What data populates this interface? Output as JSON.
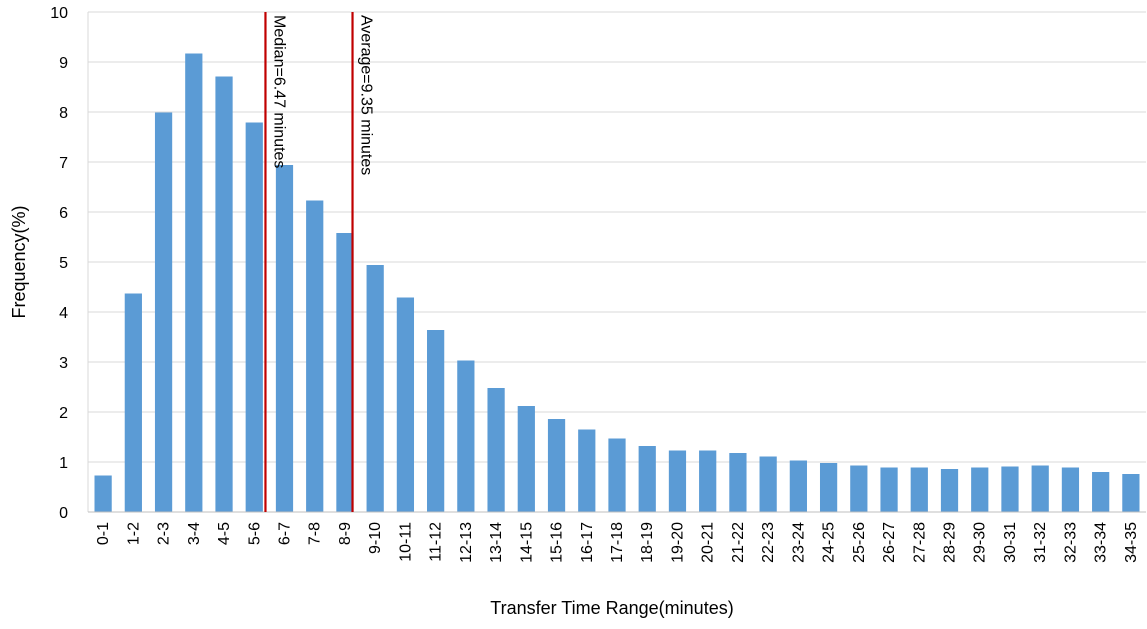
{
  "chart_data": {
    "type": "bar",
    "title": "",
    "xlabel": "Transfer Time Range(minutes)",
    "ylabel": "Frequency(%)",
    "ylim": [
      0,
      10
    ],
    "yticks": [
      0,
      1,
      2,
      3,
      4,
      5,
      6,
      7,
      8,
      9,
      10
    ],
    "grid": "horizontal",
    "legend": "none",
    "bar_color": "#5b9bd5",
    "categories": [
      "0-1",
      "1-2",
      "2-3",
      "3-4",
      "4-5",
      "5-6",
      "6-7",
      "7-8",
      "8-9",
      "9-10",
      "10-11",
      "11-12",
      "12-13",
      "13-14",
      "14-15",
      "15-16",
      "16-17",
      "17-18",
      "18-19",
      "19-20",
      "20-21",
      "21-22",
      "22-23",
      "23-24",
      "24-25",
      "25-26",
      "26-27",
      "27-28",
      "28-29",
      "29-30",
      "30-31",
      "31-32",
      "32-33",
      "33-34",
      "34-35"
    ],
    "values": [
      0.73,
      4.37,
      7.99,
      9.17,
      8.71,
      7.79,
      6.94,
      6.23,
      5.58,
      4.94,
      4.29,
      3.64,
      3.03,
      2.48,
      2.12,
      1.86,
      1.65,
      1.47,
      1.32,
      1.23,
      1.23,
      1.18,
      1.11,
      1.03,
      0.98,
      0.93,
      0.89,
      0.89,
      0.86,
      0.89,
      0.91,
      0.93,
      0.89,
      0.8,
      0.76
    ],
    "reference_lines": [
      {
        "label": "Median=6.47 minutes",
        "x": 6.47,
        "color": "#c00000"
      },
      {
        "label": "Average=9.35 minutes",
        "x": 9.35,
        "color": "#c00000"
      }
    ]
  }
}
